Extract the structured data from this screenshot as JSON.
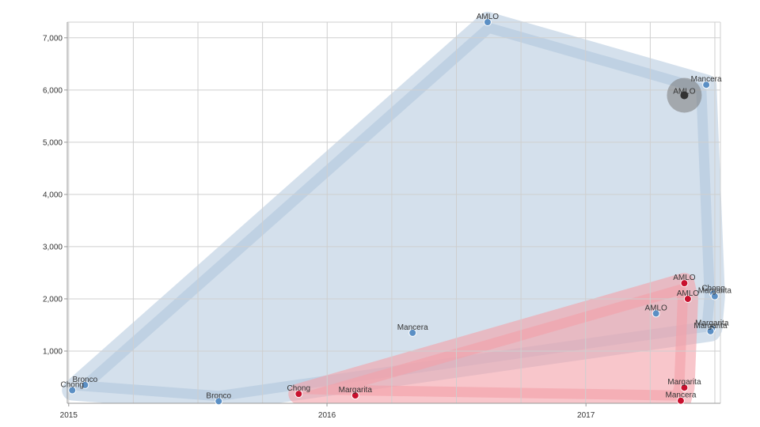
{
  "chart_data": {
    "type": "scatter",
    "title": "",
    "xlabel": "",
    "ylabel": "",
    "x_range": [
      "2014-12-30",
      "2017-07-10"
    ],
    "y_range": [
      0,
      7300
    ],
    "x_ticks": [
      {
        "date": "2015-01-01",
        "label": "2015"
      },
      {
        "date": "2016-01-01",
        "label": "2016"
      },
      {
        "date": "2017-01-01",
        "label": "2017"
      }
    ],
    "y_ticks": [
      {
        "value": 1000,
        "label": "1,000"
      },
      {
        "value": 2000,
        "label": "2,000"
      },
      {
        "value": 3000,
        "label": "3,000"
      },
      {
        "value": 4000,
        "label": "4,000"
      },
      {
        "value": 5000,
        "label": "5,000"
      },
      {
        "value": 6000,
        "label": "6,000"
      },
      {
        "value": 7000,
        "label": "7,000"
      }
    ],
    "grid": true,
    "series": [
      {
        "color": "#5b8fc4",
        "hull_color": "#a9c2da",
        "points": [
          {
            "date": "2015-01-06",
            "value": 250,
            "label": "Chong"
          },
          {
            "date": "2015-01-24",
            "value": 350,
            "label": "Bronco"
          },
          {
            "date": "2015-08-01",
            "value": 40,
            "label": "Bronco"
          },
          {
            "date": "2016-05-01",
            "value": 1350,
            "label": "Mancera"
          },
          {
            "date": "2016-08-15",
            "value": 7300,
            "label": "AMLO"
          },
          {
            "date": "2017-04-10",
            "value": 1720,
            "label": "AMLO"
          },
          {
            "date": "2017-06-20",
            "value": 6100,
            "label": "Mancera"
          },
          {
            "date": "2017-06-30",
            "value": 2100,
            "label": "Chong"
          },
          {
            "date": "2017-07-02",
            "value": 2050,
            "label": "Margarita"
          },
          {
            "date": "2017-06-28",
            "value": 1430,
            "label": "Margarita"
          },
          {
            "date": "2017-06-26",
            "value": 1380,
            "label": "Margarita"
          }
        ]
      },
      {
        "color": "#c8102e",
        "hull_color": "#f3a0a8",
        "points": [
          {
            "date": "2015-11-22",
            "value": 180,
            "label": "Chong"
          },
          {
            "date": "2016-02-10",
            "value": 150,
            "label": "Margarita"
          },
          {
            "date": "2017-05-20",
            "value": 2300,
            "label": "AMLO"
          },
          {
            "date": "2017-05-25",
            "value": 2000,
            "label": "AMLO"
          },
          {
            "date": "2017-05-20",
            "value": 300,
            "label": "Margarita"
          },
          {
            "date": "2017-05-15",
            "value": 50,
            "label": "Mancera"
          }
        ]
      }
    ],
    "highlight": {
      "date": "2017-05-20",
      "value": 5900,
      "label": "AMLO",
      "color": "#333333"
    }
  }
}
